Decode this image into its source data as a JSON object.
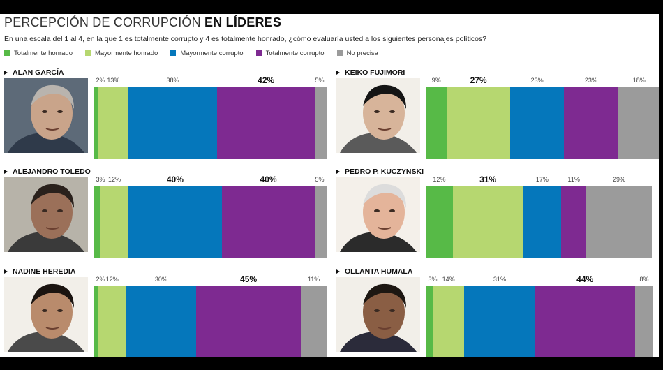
{
  "header": {
    "title_light": "PERCEPCIÓN DE CORRUPCIÓN",
    "title_bold": "EN LÍDERES",
    "subtitle": "En una escala del 1 al 4, en la que 1 es totalmente corrupto y 4 es totalmente honrado, ¿cómo evaluaría usted a los siguientes personajes políticos?"
  },
  "colors": {
    "totalmente_honrado": "#57ba47",
    "mayormente_honrado": "#b6d770",
    "mayormente_corrupto": "#0577bb",
    "totalmente_corrupto": "#7e2a91",
    "no_precisa": "#9b9b9b"
  },
  "chart_data": {
    "type": "bar",
    "orientation": "horizontal-stacked",
    "title": "PERCEPCIÓN DE CORRUPCIÓN EN LÍDERES",
    "legend_placement": "top-left",
    "legend": [
      "Totalmente honrado",
      "Mayormente honrado",
      "Mayormente corrupto",
      "Totalmente corrupto",
      "No precisa"
    ],
    "categories": [
      "ALAN GARCÍA",
      "KEIKO FUJIMORI",
      "ALEJANDRO TOLEDO",
      "PEDRO P. KUCZYNSKI",
      "NADINE HEREDIA",
      "OLLANTA HUMALA"
    ],
    "series": [
      {
        "name": "Totalmente honrado",
        "values": [
          2,
          9,
          3,
          12,
          2,
          3
        ]
      },
      {
        "name": "Mayormente honrado",
        "values": [
          13,
          27,
          12,
          31,
          12,
          14
        ]
      },
      {
        "name": "Mayormente corrupto",
        "values": [
          38,
          23,
          40,
          17,
          30,
          31
        ]
      },
      {
        "name": "Totalmente corrupto",
        "values": [
          42,
          23,
          40,
          11,
          45,
          44
        ]
      },
      {
        "name": "No precisa",
        "values": [
          5,
          18,
          5,
          29,
          11,
          8
        ]
      }
    ],
    "value_labels": [
      [
        "2%",
        "13%",
        "38%",
        "42%",
        "5%"
      ],
      [
        "9%",
        "27%",
        "23%",
        "23%",
        "18%"
      ],
      [
        "3%",
        "12%",
        "40%",
        "40%",
        "5%"
      ],
      [
        "12%",
        "31%",
        "17%",
        "11%",
        "29%"
      ],
      [
        "2%",
        "12%",
        "30%",
        "45%",
        "11%"
      ],
      [
        "3%",
        "14%",
        "31%",
        "44%",
        "8%"
      ]
    ],
    "bold_labels": [
      [
        3
      ],
      [
        1
      ],
      [
        2,
        3
      ],
      [
        1
      ],
      [
        3
      ],
      [
        3
      ]
    ]
  }
}
